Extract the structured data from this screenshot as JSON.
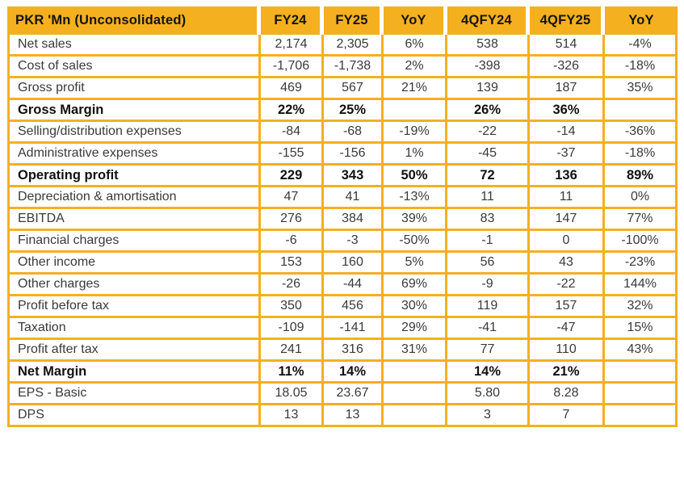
{
  "colors": {
    "gold": "#F4B01F",
    "header_text": "#141414",
    "body_text": "#3a3a3a",
    "bold_text": "#111111",
    "background": "#ffffff"
  },
  "chart_data": {
    "type": "table",
    "title": "PKR 'Mn (Unconsolidated)",
    "columns": [
      "PKR 'Mn (Unconsolidated)",
      "FY24",
      "FY25",
      "YoY",
      "4QFY24",
      "4QFY25",
      "YoY"
    ],
    "rows": [
      {
        "label": "Net sales",
        "values": [
          "2,174",
          "2,305",
          "6%",
          "538",
          "514",
          "-4%"
        ],
        "bold": false
      },
      {
        "label": "Cost of sales",
        "values": [
          "-1,706",
          "-1,738",
          "2%",
          "-398",
          "-326",
          "-18%"
        ],
        "bold": false
      },
      {
        "label": "Gross profit",
        "values": [
          "469",
          "567",
          "21%",
          "139",
          "187",
          "35%"
        ],
        "bold": false
      },
      {
        "label": "Gross Margin",
        "values": [
          "22%",
          "25%",
          "",
          "26%",
          "36%",
          ""
        ],
        "bold": true
      },
      {
        "label": "Selling/distribution expenses",
        "values": [
          "-84",
          "-68",
          "-19%",
          "-22",
          "-14",
          "-36%"
        ],
        "bold": false
      },
      {
        "label": "Administrative expenses",
        "values": [
          "-155",
          "-156",
          "1%",
          "-45",
          "-37",
          "-18%"
        ],
        "bold": false
      },
      {
        "label": "Operating profit",
        "values": [
          "229",
          "343",
          "50%",
          "72",
          "136",
          "89%"
        ],
        "bold": true
      },
      {
        "label": "Depreciation & amortisation",
        "values": [
          "47",
          "41",
          "-13%",
          "11",
          "11",
          "0%"
        ],
        "bold": false
      },
      {
        "label": "EBITDA",
        "values": [
          "276",
          "384",
          "39%",
          "83",
          "147",
          "77%"
        ],
        "bold": false
      },
      {
        "label": "Financial charges",
        "values": [
          "-6",
          "-3",
          "-50%",
          "-1",
          "0",
          "-100%"
        ],
        "bold": false
      },
      {
        "label": "Other income",
        "values": [
          "153",
          "160",
          "5%",
          "56",
          "43",
          "-23%"
        ],
        "bold": false
      },
      {
        "label": "Other charges",
        "values": [
          "-26",
          "-44",
          "69%",
          "-9",
          "-22",
          "144%"
        ],
        "bold": false
      },
      {
        "label": "Profit before tax",
        "values": [
          "350",
          "456",
          "30%",
          "119",
          "157",
          "32%"
        ],
        "bold": false
      },
      {
        "label": "Taxation",
        "values": [
          "-109",
          "-141",
          "29%",
          "-41",
          "-47",
          "15%"
        ],
        "bold": false
      },
      {
        "label": "Profit after tax",
        "values": [
          "241",
          "316",
          "31%",
          "77",
          "110",
          "43%"
        ],
        "bold": false
      },
      {
        "label": "Net Margin",
        "values": [
          "11%",
          "14%",
          "",
          "14%",
          "21%",
          ""
        ],
        "bold": true
      },
      {
        "label": "EPS - Basic",
        "values": [
          "18.05",
          "23.67",
          "",
          "5.80",
          "8.28",
          ""
        ],
        "bold": false
      },
      {
        "label": "DPS",
        "values": [
          "13",
          "13",
          "",
          "3",
          "7",
          ""
        ],
        "bold": false
      }
    ]
  }
}
